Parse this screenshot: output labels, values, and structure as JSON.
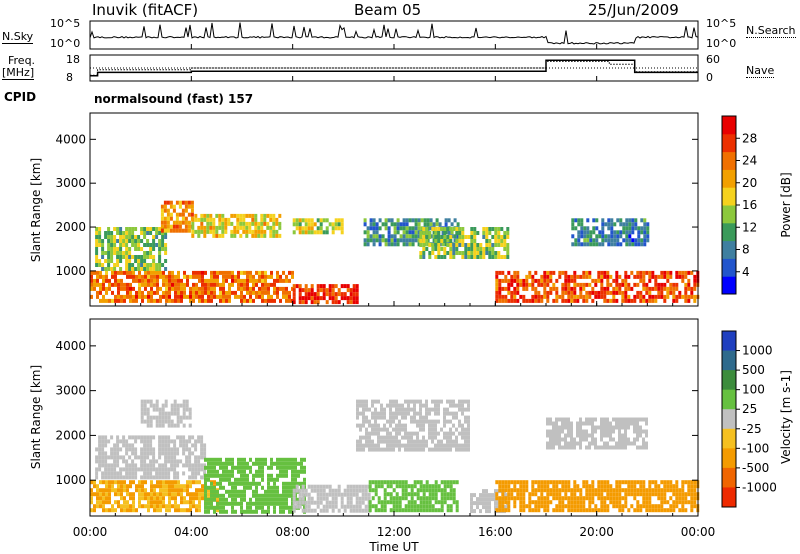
{
  "header": {
    "station": "Inuvik (fitACF)",
    "beam": "Beam 05",
    "date": "25/Jun/2009"
  },
  "top_panels": {
    "nsky_label": "N.Sky",
    "nsky_ticks": [
      "10^5",
      "10^0"
    ],
    "nsearch_label": "N.Search",
    "nsearch_ticks": [
      "10^5",
      "10^0"
    ],
    "freq_label": "Freq.",
    "freq_unit": "[MHz]",
    "freq_ticks": [
      "18",
      "8"
    ],
    "nave_label": "Nave",
    "nave_ticks": [
      "60",
      "0"
    ],
    "cpid_label": "CPID",
    "cpid_value": "normalsound (fast) 157"
  },
  "chart_data": [
    {
      "type": "heatmap",
      "name": "power",
      "ylabel": "Slant Range [km]",
      "ylim": [
        200,
        4600
      ],
      "yticks": [
        "1000",
        "2000",
        "3000",
        "4000"
      ],
      "colorbar_label": "Power [dB]",
      "colorbar_ticks": [
        "4",
        "8",
        "12",
        "16",
        "20",
        "24",
        "28"
      ],
      "colorbar_range": [
        0,
        32
      ],
      "colors": [
        "#0000ff",
        "#2255cc",
        "#3f7fa0",
        "#3a9a5a",
        "#8cc83c",
        "#f5d21e",
        "#f2a000",
        "#f07000",
        "#ec3000",
        "#e80000"
      ],
      "regions": [
        {
          "t0": 0.0,
          "t1": 8.0,
          "r0": 300,
          "r1": 1000,
          "v": 24
        },
        {
          "t0": 0.2,
          "t1": 3.0,
          "r0": 1000,
          "r1": 2000,
          "v": 14
        },
        {
          "t0": 2.8,
          "t1": 4.0,
          "r0": 1900,
          "r1": 2600,
          "v": 22
        },
        {
          "t0": 4.0,
          "t1": 7.5,
          "r0": 1800,
          "r1": 2300,
          "v": 18
        },
        {
          "t0": 8.0,
          "t1": 10.0,
          "r0": 1900,
          "r1": 2200,
          "v": 16
        },
        {
          "t0": 8.0,
          "t1": 10.5,
          "r0": 300,
          "r1": 700,
          "v": 28
        },
        {
          "t0": 10.8,
          "t1": 14.5,
          "r0": 1600,
          "r1": 2200,
          "v": 10
        },
        {
          "t0": 13.0,
          "t1": 16.5,
          "r0": 1300,
          "r1": 2000,
          "v": 14
        },
        {
          "t0": 16.0,
          "t1": 24.0,
          "r0": 300,
          "r1": 1000,
          "v": 26
        },
        {
          "t0": 19.0,
          "t1": 22.0,
          "r0": 1600,
          "r1": 2200,
          "v": 8
        }
      ]
    },
    {
      "type": "heatmap",
      "name": "velocity",
      "ylabel": "Slant Range [km]",
      "ylim": [
        200,
        4600
      ],
      "yticks": [
        "1000",
        "2000",
        "3000",
        "4000"
      ],
      "colorbar_label": "Velocity [m s-1]",
      "colorbar_ticks": [
        "1000",
        "500",
        "100",
        "25",
        "-25",
        "-100",
        "-500",
        "-1000"
      ],
      "colors": [
        "#1f3fbf",
        "#2e6a8c",
        "#3c8c3c",
        "#66c040",
        "#c0c0c0",
        "#f5c020",
        "#f49b00",
        "#f06500",
        "#ee2a00"
      ],
      "regions": [
        {
          "t0": 0.0,
          "t1": 5.0,
          "r0": 300,
          "r1": 1000,
          "v": -100
        },
        {
          "t0": 0.2,
          "t1": 4.5,
          "r0": 1100,
          "r1": 2000,
          "v": 20
        },
        {
          "t0": 2.0,
          "t1": 4.0,
          "r0": 2200,
          "r1": 2800,
          "v": 0
        },
        {
          "t0": 4.5,
          "t1": 8.5,
          "r0": 300,
          "r1": 1500,
          "v": 80
        },
        {
          "t0": 8.0,
          "t1": 11.0,
          "r0": 300,
          "r1": 900,
          "v": 0
        },
        {
          "t0": 10.5,
          "t1": 15.0,
          "r0": 1700,
          "r1": 2800,
          "v": 0
        },
        {
          "t0": 11.0,
          "t1": 14.5,
          "r0": 300,
          "r1": 1000,
          "v": 80
        },
        {
          "t0": 15.0,
          "t1": 16.5,
          "r0": 300,
          "r1": 800,
          "v": 20
        },
        {
          "t0": 16.0,
          "t1": 24.0,
          "r0": 300,
          "r1": 1000,
          "v": -150
        },
        {
          "t0": 18.0,
          "t1": 22.0,
          "r0": 1700,
          "r1": 2400,
          "v": 0
        }
      ]
    }
  ],
  "time_axis": {
    "xlabel": "Time UT",
    "ticks": [
      "00:00",
      "04:00",
      "08:00",
      "12:00",
      "16:00",
      "20:00",
      "00:00"
    ]
  },
  "frequency_steps": [
    {
      "t0": 0.0,
      "t1": 0.3,
      "v": 9.5
    },
    {
      "t0": 0.3,
      "t1": 4.0,
      "v": 11.0
    },
    {
      "t0": 4.0,
      "t1": 18.0,
      "v": 11.5
    },
    {
      "t0": 18.0,
      "t1": 21.5,
      "v": 16.5
    },
    {
      "t0": 21.5,
      "t1": 24.0,
      "v": 11.0
    }
  ],
  "nave_steps": [
    {
      "t0": 0.0,
      "t1": 0.3,
      "v": 10
    },
    {
      "t0": 0.3,
      "t1": 4.0,
      "v": 25
    },
    {
      "t0": 4.0,
      "t1": 18.0,
      "v": 30
    },
    {
      "t0": 18.0,
      "t1": 20.5,
      "v": 48
    },
    {
      "t0": 20.5,
      "t1": 21.5,
      "v": 40
    },
    {
      "t0": 21.5,
      "t1": 24.0,
      "v": 20
    }
  ]
}
